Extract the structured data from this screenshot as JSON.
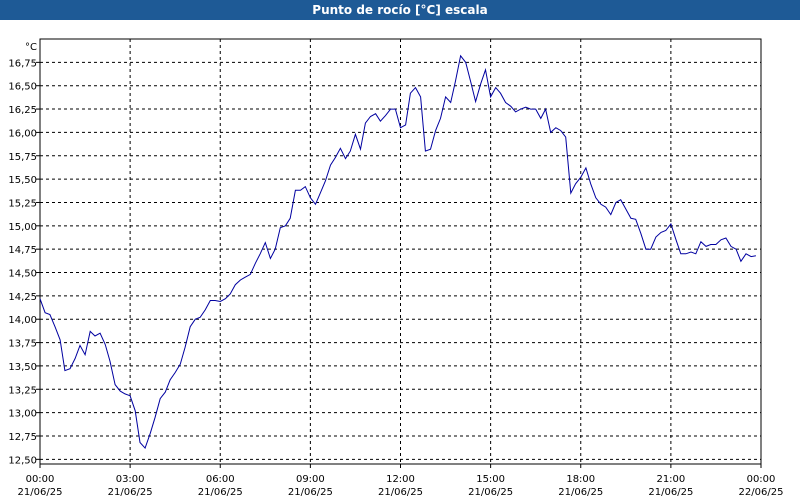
{
  "window": {
    "title": "Punto de rocío [°C] escala",
    "title_bg": "#1e5a96",
    "title_fg": "#ffffff"
  },
  "chart_data": {
    "type": "line",
    "title": "Punto de rocío [°C] escala",
    "ylabel": "°C",
    "xlabel": "",
    "ylim": [
      12.45,
      17.0
    ],
    "xlim": [
      0,
      24
    ],
    "grid": true,
    "line_color": "#0000a0",
    "y_ticks": [
      "12,50",
      "12,75",
      "13,00",
      "13,25",
      "13,50",
      "13,75",
      "14,00",
      "14,25",
      "14,50",
      "14,75",
      "15,00",
      "15,25",
      "15,50",
      "15,75",
      "16,00",
      "16,25",
      "16,50",
      "16,75"
    ],
    "y_tick_values": [
      12.5,
      12.75,
      13.0,
      13.25,
      13.5,
      13.75,
      14.0,
      14.25,
      14.5,
      14.75,
      15.0,
      15.25,
      15.5,
      15.75,
      16.0,
      16.25,
      16.5,
      16.75
    ],
    "x_ticks": [
      {
        "time": "00:00",
        "date": "21/06/25",
        "hour": 0
      },
      {
        "time": "03:00",
        "date": "21/06/25",
        "hour": 3
      },
      {
        "time": "06:00",
        "date": "21/06/25",
        "hour": 6
      },
      {
        "time": "09:00",
        "date": "21/06/25",
        "hour": 9
      },
      {
        "time": "12:00",
        "date": "21/06/25",
        "hour": 12
      },
      {
        "time": "15:00",
        "date": "21/06/25",
        "hour": 15
      },
      {
        "time": "18:00",
        "date": "21/06/25",
        "hour": 18
      },
      {
        "time": "21:00",
        "date": "21/06/25",
        "hour": 21
      },
      {
        "time": "00:00",
        "date": "22/06/25",
        "hour": 24
      }
    ],
    "series": [
      {
        "x": [
          0,
          0.17,
          0.33,
          0.5,
          0.67,
          0.83,
          1.0,
          1.17,
          1.33,
          1.5,
          1.67,
          1.83,
          2.0,
          2.17,
          2.33,
          2.5,
          2.67,
          2.83,
          3.0,
          3.17,
          3.33,
          3.5,
          3.67,
          3.83,
          4.0,
          4.17,
          4.33,
          4.5,
          4.67,
          4.83,
          5.0,
          5.17,
          5.33,
          5.5,
          5.67,
          5.83,
          6.0,
          6.17,
          6.33,
          6.5,
          6.67,
          6.83,
          7.0,
          7.17,
          7.33,
          7.5,
          7.67,
          7.83,
          8.0,
          8.17,
          8.33,
          8.5,
          8.67,
          8.83,
          9.0,
          9.17,
          9.33,
          9.5,
          9.67,
          9.83,
          10.0,
          10.17,
          10.33,
          10.5,
          10.67,
          10.83,
          11.0,
          11.17,
          11.33,
          11.5,
          11.67,
          11.83,
          12.0,
          12.17,
          12.33,
          12.5,
          12.67,
          12.83,
          13.0,
          13.17,
          13.33,
          13.5,
          13.67,
          13.83,
          14.0,
          14.17,
          14.33,
          14.5,
          14.67,
          14.83,
          15.0,
          15.17,
          15.33,
          15.5,
          15.67,
          15.83,
          16.0,
          16.17,
          16.33,
          16.5,
          16.67,
          16.83,
          17.0,
          17.17,
          17.33,
          17.5,
          17.67,
          17.83,
          18.0,
          18.17,
          18.33,
          18.5,
          18.67,
          18.83,
          19.0,
          19.17,
          19.33,
          19.5,
          19.67,
          19.83,
          20.0,
          20.17,
          20.33,
          20.5,
          20.67,
          20.83,
          21.0,
          21.17,
          21.33,
          21.5,
          21.67,
          21.83,
          22.0,
          22.17,
          22.33,
          22.5,
          22.67,
          22.83,
          23.0,
          23.17,
          23.33,
          23.5,
          23.67,
          23.83
        ],
        "y": [
          14.22,
          14.07,
          14.05,
          13.92,
          13.78,
          13.45,
          13.47,
          13.58,
          13.72,
          13.62,
          13.87,
          13.82,
          13.85,
          13.73,
          13.55,
          13.3,
          13.23,
          13.2,
          13.18,
          13.02,
          12.68,
          12.62,
          12.78,
          12.95,
          13.15,
          13.22,
          13.35,
          13.43,
          13.52,
          13.7,
          13.92,
          14.0,
          14.02,
          14.1,
          14.2,
          14.2,
          14.19,
          14.22,
          14.27,
          14.37,
          14.42,
          14.45,
          14.48,
          14.6,
          14.7,
          14.82,
          14.65,
          14.75,
          14.98,
          15.0,
          15.08,
          15.38,
          15.38,
          15.42,
          15.3,
          15.23,
          15.35,
          15.48,
          15.65,
          15.73,
          15.83,
          15.72,
          15.8,
          15.98,
          15.82,
          16.1,
          16.17,
          16.2,
          16.12,
          16.18,
          16.25,
          16.25,
          16.05,
          16.08,
          16.42,
          16.48,
          16.38,
          15.8,
          15.82,
          16.02,
          16.15,
          16.38,
          16.32,
          16.55,
          16.82,
          16.75,
          16.55,
          16.33,
          16.52,
          16.67,
          16.38,
          16.48,
          16.42,
          16.32,
          16.28,
          16.22,
          16.25,
          16.27,
          16.25,
          16.25,
          16.15,
          16.25,
          16.0,
          16.05,
          16.02,
          15.95,
          15.35,
          15.45,
          15.52,
          15.62,
          15.45,
          15.3,
          15.23,
          15.2,
          15.12,
          15.25,
          15.28,
          15.18,
          15.08,
          15.07,
          14.92,
          14.75,
          14.75,
          14.88,
          14.93,
          14.95,
          15.02,
          14.85,
          14.7,
          14.7,
          14.72,
          14.7,
          14.83,
          14.78,
          14.8,
          14.8,
          14.85,
          14.87,
          14.78,
          14.75,
          14.62,
          14.7,
          14.67,
          14.68
        ]
      }
    ]
  }
}
